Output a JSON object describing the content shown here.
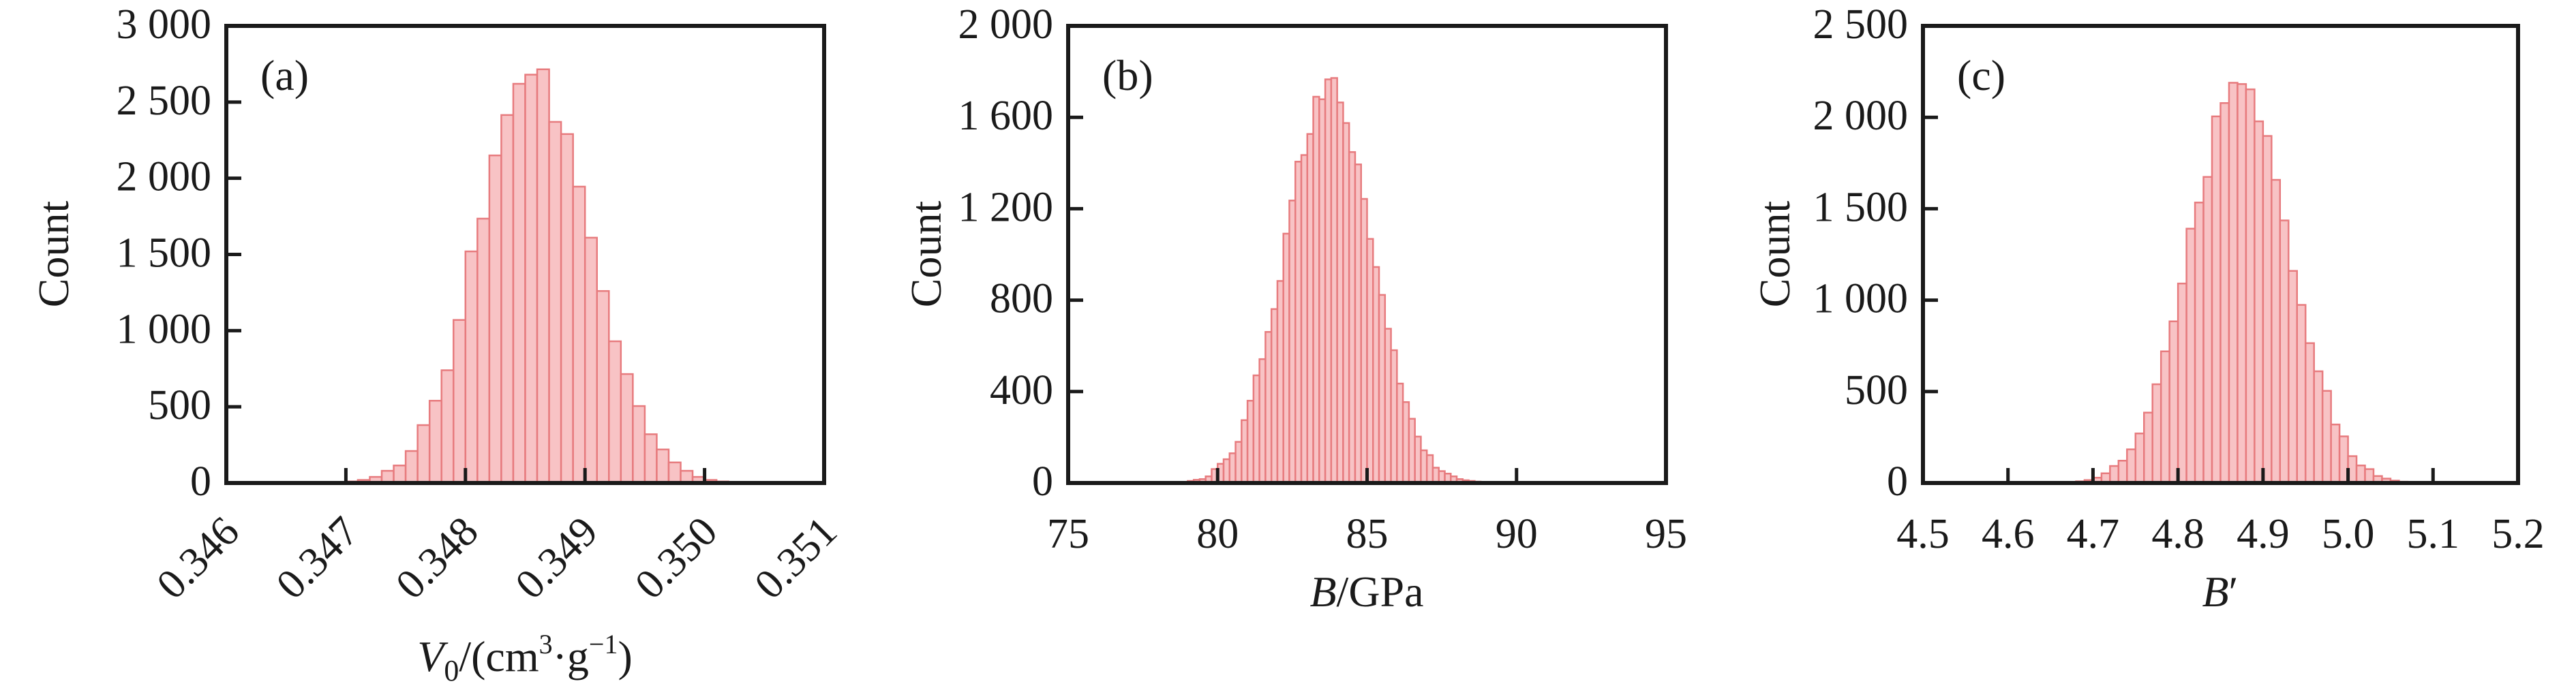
{
  "colors": {
    "bar_fill": "#f8c3c5",
    "bar_stroke": "#e77b7e",
    "axis": "#1a1a1a"
  },
  "chart_data": [
    {
      "type": "bar",
      "panel_label": "(a)",
      "xlabel_var": "V",
      "xlabel_sub": "0",
      "xlabel_rest": "/(cm",
      "xlabel_sup1": "3",
      "xlabel_mid": "·g",
      "xlabel_sup2": "−1",
      "xlabel_end": ")",
      "ylabel": "Count",
      "xlim": [
        0.346,
        0.351
      ],
      "ylim": [
        0,
        3000
      ],
      "xticks": [
        0.346,
        0.347,
        0.348,
        0.349,
        0.35,
        0.351
      ],
      "xtick_labels": [
        "0.346",
        "0.347",
        "0.348",
        "0.349",
        "0.350",
        "0.351"
      ],
      "xtick_rotation": 45,
      "yticks": [
        0,
        500,
        1000,
        1500,
        2000,
        2500,
        3000
      ],
      "ytick_labels": [
        "0",
        "500",
        "1 000",
        "1 500",
        "2 000",
        "2 500",
        "3 000"
      ],
      "bin_start": 0.347,
      "bin_width": 0.0001,
      "values": [
        10,
        20,
        40,
        80,
        115,
        210,
        380,
        540,
        740,
        1070,
        1520,
        1735,
        2150,
        2415,
        2620,
        2680,
        2715,
        2370,
        2290,
        1945,
        1610,
        1260,
        930,
        715,
        505,
        320,
        220,
        135,
        80,
        40,
        20,
        10,
        5
      ]
    },
    {
      "type": "bar",
      "panel_label": "(b)",
      "xlabel_var": "B",
      "xlabel_rest": "/GPa",
      "ylabel": "Count",
      "xlim": [
        75,
        95
      ],
      "ylim": [
        0,
        2000
      ],
      "xticks": [
        75,
        80,
        85,
        90,
        95
      ],
      "xtick_labels": [
        "75",
        "80",
        "85",
        "90",
        "95"
      ],
      "yticks": [
        0,
        400,
        800,
        1200,
        1600,
        2000
      ],
      "ytick_labels": [
        "0",
        "400",
        "800",
        "1 200",
        "1 600",
        "2 000"
      ],
      "bin_start": 78.6,
      "bin_width": 0.2,
      "values": [
        3,
        4,
        9,
        14,
        17,
        29,
        61,
        84,
        104,
        130,
        180,
        275,
        360,
        471,
        542,
        661,
        761,
        884,
        1091,
        1236,
        1406,
        1435,
        1527,
        1690,
        1679,
        1766,
        1772,
        1665,
        1575,
        1448,
        1394,
        1243,
        1068,
        945,
        823,
        675,
        581,
        435,
        354,
        281,
        203,
        143,
        122,
        67,
        52,
        41,
        29,
        17,
        12,
        9,
        6,
        3
      ]
    },
    {
      "type": "bar",
      "panel_label": "(c)",
      "xlabel_var": "B",
      "xlabel_rest": "′",
      "ylabel": "Count",
      "xlim": [
        4.5,
        5.2
      ],
      "ylim": [
        0,
        2500
      ],
      "xticks": [
        4.5,
        4.6,
        4.7,
        4.8,
        4.9,
        5.0,
        5.1,
        5.2
      ],
      "xtick_labels": [
        "4.5",
        "4.6",
        "4.7",
        "4.8",
        "4.9",
        "5.0",
        "5.1",
        "5.2"
      ],
      "yticks": [
        0,
        500,
        1000,
        1500,
        2000,
        2500
      ],
      "ytick_labels": [
        "0",
        "500",
        "1 000",
        "1 500",
        "2 000",
        "2 500"
      ],
      "bin_start": 4.68,
      "bin_width": 0.01,
      "values": [
        9,
        16,
        29,
        53,
        93,
        122,
        184,
        271,
        385,
        540,
        720,
        884,
        1091,
        1391,
        1534,
        1674,
        2005,
        2078,
        2189,
        2182,
        2153,
        1978,
        1898,
        1658,
        1436,
        1160,
        974,
        765,
        611,
        504,
        320,
        255,
        147,
        96,
        76,
        38,
        24,
        13,
        7
      ]
    }
  ]
}
